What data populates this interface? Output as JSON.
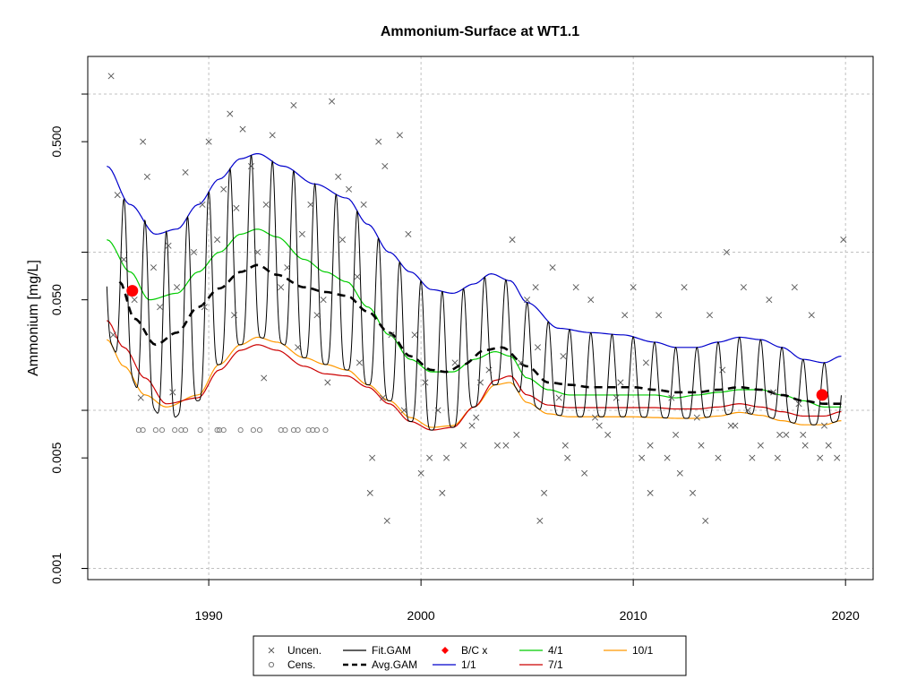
{
  "chart_data": {
    "type": "line",
    "title": "Ammonium-Surface at WT1.1",
    "xlabel": "",
    "ylabel": "Ammonium [mg/L]",
    "y_scale": "log10",
    "xlim": [
      1984.3,
      2021.3
    ],
    "ylim": [
      0.00085,
      1.73
    ],
    "x_ticks": [
      1990,
      2000,
      2010,
      2020
    ],
    "x_tick_labels": [
      "1990",
      "2000",
      "2010",
      "2020"
    ],
    "y_ticks": [
      0.001,
      0.005,
      0.05,
      0.5
    ],
    "y_tick_labels": [
      "0.001",
      "0.005",
      "0.050",
      "0.500"
    ],
    "grid_y": [
      0.001,
      0.01,
      0.1,
      1.0
    ],
    "grid": true,
    "colors": {
      "uncen": "#555555",
      "cens": "#777777",
      "fit_gam": "#000000",
      "avg_gam": "#000000",
      "bc_x": "#ff0000",
      "ratio_1_1": "#0000cc",
      "ratio_4_1": "#00cc00",
      "ratio_7_1": "#cc0000",
      "ratio_10_1": "#ff9900",
      "grid": "#c0c0c0"
    },
    "series": [
      {
        "name": "Avg.GAM",
        "style": "dashed",
        "x": [
          1985.8,
          1986.5,
          1987.5,
          1988.5,
          1989.5,
          1990.5,
          1991.5,
          1992.3,
          1993.2,
          1994.5,
          1995.5,
          1996.5,
          1997.5,
          1998.5,
          1999.5,
          2000.5,
          2001.2,
          2002.0,
          2003.0,
          2003.8,
          2005.0,
          2006.0,
          2007.0,
          2008.0,
          2009.0,
          2010.0,
          2011.0,
          2012.0,
          2013.0,
          2014.0,
          2015.0,
          2016.0,
          2017.0,
          2018.0,
          2019.0,
          2019.8
        ],
        "y": [
          0.065,
          0.038,
          0.026,
          0.031,
          0.045,
          0.059,
          0.075,
          0.083,
          0.072,
          0.06,
          0.056,
          0.053,
          0.042,
          0.031,
          0.022,
          0.018,
          0.0175,
          0.0195,
          0.024,
          0.025,
          0.019,
          0.015,
          0.0145,
          0.014,
          0.014,
          0.014,
          0.0135,
          0.013,
          0.013,
          0.0135,
          0.014,
          0.0135,
          0.0125,
          0.0115,
          0.011,
          0.011
        ]
      },
      {
        "name": "1/1",
        "x": [
          1985.2,
          1986.3,
          1987.5,
          1988.5,
          1989.5,
          1990.5,
          1991.5,
          1992.3,
          1993.5,
          1995.0,
          1996.5,
          1997.5,
          1998.5,
          1999.5,
          2000.5,
          2001.5,
          2002.5,
          2003.3,
          2004.2,
          2005.0,
          2006.5,
          2008.0,
          2009.5,
          2011.0,
          2012.0,
          2013.0,
          2014.0,
          2015.0,
          2016.0,
          2017.0,
          2018.0,
          2019.0,
          2019.8
        ],
        "y": [
          0.35,
          0.2,
          0.13,
          0.14,
          0.2,
          0.29,
          0.39,
          0.42,
          0.35,
          0.27,
          0.22,
          0.15,
          0.1,
          0.075,
          0.058,
          0.055,
          0.063,
          0.073,
          0.066,
          0.048,
          0.033,
          0.031,
          0.03,
          0.027,
          0.025,
          0.025,
          0.027,
          0.029,
          0.028,
          0.025,
          0.021,
          0.02,
          0.022
        ]
      },
      {
        "name": "4/1",
        "x": [
          1985.2,
          1986.3,
          1987.2,
          1988.5,
          1989.5,
          1990.5,
          1991.5,
          1992.3,
          1993.2,
          1994.5,
          1995.5,
          1996.5,
          1997.5,
          1998.5,
          1999.5,
          2000.5,
          2001.5,
          2002.5,
          2003.5,
          2004.2,
          2005.0,
          2006.0,
          2007.0,
          2008.0,
          2009.0,
          2010.0,
          2011.0,
          2012.0,
          2013.0,
          2014.0,
          2015.0,
          2016.0,
          2017.0,
          2018.0,
          2019.0,
          2019.8
        ],
        "y": [
          0.12,
          0.075,
          0.05,
          0.055,
          0.075,
          0.1,
          0.13,
          0.14,
          0.125,
          0.09,
          0.075,
          0.065,
          0.045,
          0.03,
          0.021,
          0.0175,
          0.0175,
          0.021,
          0.0235,
          0.022,
          0.016,
          0.0135,
          0.0125,
          0.0125,
          0.0125,
          0.0125,
          0.0125,
          0.012,
          0.0125,
          0.013,
          0.0135,
          0.0135,
          0.0125,
          0.0115,
          0.0105,
          0.0105
        ]
      },
      {
        "name": "7/1",
        "x": [
          1985.2,
          1986.0,
          1987.0,
          1988.0,
          1989.5,
          1990.5,
          1991.5,
          1992.3,
          1993.2,
          1994.5,
          1995.5,
          1996.5,
          1997.5,
          1998.5,
          1999.5,
          2000.5,
          2001.5,
          2002.5,
          2003.5,
          2004.2,
          2005.0,
          2006.0,
          2007.0,
          2008.0,
          2009.0,
          2010.0,
          2011.0,
          2012.0,
          2013.0,
          2014.0,
          2015.0,
          2016.0,
          2017.0,
          2018.0,
          2019.0,
          2019.8
        ],
        "y": [
          0.037,
          0.025,
          0.016,
          0.011,
          0.012,
          0.018,
          0.024,
          0.026,
          0.024,
          0.019,
          0.017,
          0.0165,
          0.014,
          0.011,
          0.0085,
          0.0075,
          0.0078,
          0.0105,
          0.0155,
          0.0165,
          0.0125,
          0.0108,
          0.0104,
          0.0104,
          0.0104,
          0.0104,
          0.0104,
          0.0102,
          0.0102,
          0.0105,
          0.011,
          0.0105,
          0.0098,
          0.0092,
          0.0092,
          0.0098
        ]
      },
      {
        "name": "10/1",
        "x": [
          1985.2,
          1986.0,
          1987.0,
          1988.0,
          1989.5,
          1990.5,
          1991.5,
          1992.3,
          1993.2,
          1994.5,
          1995.5,
          1996.5,
          1997.5,
          1998.5,
          1999.5,
          2000.5,
          2001.5,
          2002.5,
          2003.5,
          2004.2,
          2005.0,
          2006.0,
          2007.0,
          2008.0,
          2009.0,
          2010.0,
          2011.0,
          2012.0,
          2013.0,
          2014.0,
          2015.0,
          2016.0,
          2017.0,
          2018.0,
          2019.0,
          2019.8
        ],
        "y": [
          0.028,
          0.019,
          0.0125,
          0.0105,
          0.0125,
          0.0195,
          0.026,
          0.029,
          0.027,
          0.0215,
          0.0195,
          0.018,
          0.0145,
          0.0115,
          0.009,
          0.0078,
          0.008,
          0.0105,
          0.0145,
          0.015,
          0.0112,
          0.0095,
          0.0091,
          0.0091,
          0.0091,
          0.0091,
          0.009,
          0.0089,
          0.0089,
          0.0092,
          0.0097,
          0.0093,
          0.0086,
          0.0081,
          0.0081,
          0.0086
        ]
      },
      {
        "name": "Fit.GAM",
        "style": "seasonal",
        "x_start": 1985.2,
        "x_end": 2019.8,
        "upper": {
          "x": [
            1985.2,
            1986.3,
            1987.5,
            1988.5,
            1989.5,
            1990.5,
            1991.5,
            1992.3,
            1993.5,
            1995.0,
            1996.5,
            1997.5,
            1998.5,
            1999.5,
            2000.5,
            2001.5,
            2002.5,
            2003.3,
            2004.2,
            2005.0,
            2006.5,
            2008.0,
            2009.5,
            2011.0,
            2012.0,
            2013.0,
            2014.0,
            2015.0,
            2016.0,
            2017.0,
            2018.0,
            2019.0,
            2019.8
          ],
          "y": [
            0.2,
            0.22,
            0.13,
            0.14,
            0.2,
            0.29,
            0.39,
            0.42,
            0.35,
            0.27,
            0.22,
            0.15,
            0.1,
            0.075,
            0.058,
            0.055,
            0.063,
            0.073,
            0.066,
            0.048,
            0.033,
            0.031,
            0.03,
            0.027,
            0.025,
            0.025,
            0.027,
            0.029,
            0.028,
            0.025,
            0.021,
            0.02,
            0.022
          ]
        },
        "lower": {
          "x": [
            1985.2,
            1986.0,
            1987.0,
            1988.0,
            1989.5,
            1990.5,
            1991.5,
            1992.3,
            1993.2,
            1994.5,
            1995.5,
            1996.5,
            1997.5,
            1998.5,
            1999.5,
            2000.5,
            2001.5,
            2002.5,
            2003.5,
            2004.2,
            2005.0,
            2006.0,
            2007.0,
            2008.0,
            2009.0,
            2010.0,
            2011.0,
            2012.0,
            2013.0,
            2014.0,
            2015.0,
            2016.0,
            2017.0,
            2018.0,
            2019.0,
            2019.8
          ],
          "y": [
            0.028,
            0.019,
            0.0115,
            0.0085,
            0.0115,
            0.0195,
            0.026,
            0.029,
            0.027,
            0.0215,
            0.0195,
            0.018,
            0.0145,
            0.0115,
            0.0085,
            0.0075,
            0.0078,
            0.0105,
            0.0145,
            0.015,
            0.0112,
            0.0095,
            0.0091,
            0.0091,
            0.0091,
            0.0091,
            0.009,
            0.0089,
            0.0089,
            0.0092,
            0.0097,
            0.0093,
            0.0086,
            0.0081,
            0.0081,
            0.0086
          ]
        }
      }
    ],
    "bc_points": {
      "name": "B/C x",
      "x": [
        1986.4,
        2018.9
      ],
      "y": [
        0.057,
        0.0125
      ]
    },
    "uncensored_points": {
      "name": "Uncen.",
      "x": [
        1985.4,
        1985.7,
        1986.0,
        1986.5,
        1986.9,
        1987.1,
        1987.4,
        1987.7,
        1988.1,
        1988.5,
        1988.9,
        1989.3,
        1989.7,
        1990.0,
        1990.4,
        1990.7,
        1991.0,
        1991.3,
        1991.6,
        1992.0,
        1992.3,
        1992.7,
        1993.0,
        1993.4,
        1993.7,
        1994.0,
        1994.4,
        1994.8,
        1995.1,
        1995.4,
        1995.8,
        1996.1,
        1996.3,
        1996.6,
        1997.0,
        1997.3,
        1997.7,
        1998.0,
        1998.3,
        1998.6,
        1999.0,
        1999.4,
        1999.7,
        2000.0,
        2000.4,
        2000.8,
        2001.2,
        2001.6,
        2002.0,
        2002.4,
        2002.8,
        2003.2,
        2003.6,
        2004.0,
        2004.3,
        2004.7,
        2005.0,
        2005.4,
        2005.8,
        2006.2,
        2006.5,
        2006.9,
        2007.3,
        2007.7,
        2008.0,
        2008.4,
        2008.8,
        2009.2,
        2009.6,
        2010.0,
        2010.4,
        2010.8,
        2011.2,
        2011.6,
        2012.0,
        2012.4,
        2012.8,
        2013.2,
        2013.6,
        2014.0,
        2014.4,
        2014.8,
        2015.2,
        2015.6,
        2016.0,
        2016.4,
        2016.8,
        2017.2,
        2017.6,
        2018.0,
        2018.4,
        2018.8,
        2019.2,
        2019.6,
        2019.9,
        1985.5,
        1986.8,
        1988.3,
        1989.8,
        1991.2,
        1992.6,
        1994.2,
        1995.6,
        1997.1,
        1998.2,
        1999.2,
        2000.2,
        2001.0,
        2002.6,
        2004.5,
        2005.5,
        2006.7,
        2008.2,
        2009.4,
        2010.6,
        2011.8,
        2013.0,
        2014.2,
        2015.4,
        2016.6,
        2017.8,
        2019.0,
        1997.6,
        1998.4,
        2005.6,
        2006.8,
        2010.8,
        2012.2,
        2013.4,
        2014.6,
        2016.9,
        2018.1
      ],
      "y": [
        1.3,
        0.23,
        0.09,
        0.05,
        0.5,
        0.3,
        0.08,
        0.045,
        0.11,
        0.06,
        0.32,
        0.1,
        0.2,
        0.5,
        0.12,
        0.25,
        0.75,
        0.19,
        0.6,
        0.35,
        0.1,
        0.2,
        0.55,
        0.06,
        0.08,
        0.85,
        0.13,
        0.2,
        0.04,
        0.05,
        0.9,
        0.3,
        0.12,
        0.25,
        0.07,
        0.2,
        0.005,
        0.5,
        0.35,
        0.03,
        0.55,
        0.13,
        0.03,
        0.004,
        0.005,
        0.01,
        0.005,
        0.02,
        0.006,
        0.008,
        0.015,
        0.018,
        0.006,
        0.006,
        0.12,
        0.02,
        0.05,
        0.06,
        0.003,
        0.08,
        0.012,
        0.005,
        0.06,
        0.004,
        0.05,
        0.008,
        0.007,
        0.012,
        0.04,
        0.06,
        0.005,
        0.006,
        0.04,
        0.005,
        0.007,
        0.06,
        0.003,
        0.006,
        0.04,
        0.005,
        0.1,
        0.008,
        0.06,
        0.005,
        0.006,
        0.05,
        0.005,
        0.007,
        0.06,
        0.007,
        0.04,
        0.005,
        0.006,
        0.005,
        0.12,
        0.03,
        0.012,
        0.013,
        0.045,
        0.04,
        0.016,
        0.025,
        0.015,
        0.02,
        0.012,
        0.01,
        0.015,
        0.003,
        0.009,
        0.007,
        0.025,
        0.022,
        0.009,
        0.015,
        0.02,
        0.012,
        0.009,
        0.018,
        0.01,
        0.013,
        0.011,
        0.008,
        0.003,
        0.002,
        0.002,
        0.006,
        0.003,
        0.004,
        0.002,
        0.008,
        0.007,
        0.006
      ]
    },
    "censored_points": {
      "name": "Cens.",
      "x": [
        1986.7,
        1986.9,
        1987.5,
        1987.8,
        1988.4,
        1988.7,
        1988.9,
        1989.6,
        1990.4,
        1990.5,
        1990.7,
        1991.5,
        1992.1,
        1992.4,
        1993.4,
        1993.6,
        1994.0,
        1994.2,
        1994.7,
        1994.9,
        1995.1,
        1995.5
      ],
      "y": [
        0.0075,
        0.0075,
        0.0075,
        0.0075,
        0.0075,
        0.0075,
        0.0075,
        0.0075,
        0.0075,
        0.0075,
        0.0075,
        0.0075,
        0.0075,
        0.0075,
        0.0075,
        0.0075,
        0.0075,
        0.0075,
        0.0075,
        0.0075,
        0.0075,
        0.0075
      ]
    },
    "legend": {
      "placement": "bottom-center",
      "entries": [
        {
          "label": "Uncen.",
          "symbol": "x",
          "color": "#555555"
        },
        {
          "label": "Cens.",
          "symbol": "o",
          "color": "#777777"
        },
        {
          "label": "Fit.GAM",
          "symbol": "line",
          "color": "#000000"
        },
        {
          "label": "Avg.GAM",
          "symbol": "dashed",
          "color": "#000000"
        },
        {
          "label": "B/C x",
          "symbol": "diamond",
          "color": "#ff0000"
        },
        {
          "label": "1/1",
          "symbol": "line",
          "color": "#0000cc"
        },
        {
          "label": "4/1",
          "symbol": "line",
          "color": "#00cc00"
        },
        {
          "label": "7/1",
          "symbol": "line",
          "color": "#cc0000"
        },
        {
          "label": "10/1",
          "symbol": "line",
          "color": "#ff9900"
        }
      ]
    }
  }
}
